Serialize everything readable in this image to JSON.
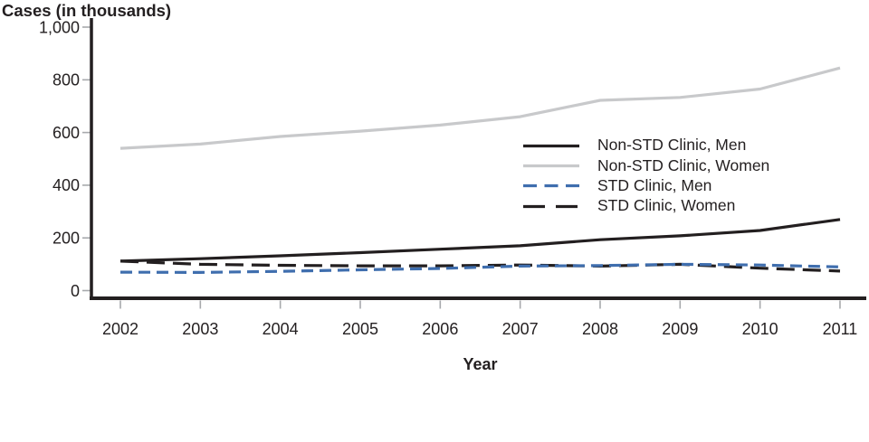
{
  "chart_data": {
    "type": "line",
    "ylabel": "Cases (in thousands)",
    "xlabel": "Year",
    "x": [
      2002,
      2003,
      2004,
      2005,
      2006,
      2007,
      2008,
      2009,
      2010,
      2011
    ],
    "ylim": [
      0,
      1000
    ],
    "yticks": [
      0,
      200,
      400,
      600,
      800,
      1000
    ],
    "ytick_labels": [
      "0",
      "200",
      "400",
      "600",
      "800",
      "1,000"
    ],
    "grid": false,
    "legend_position": "right-center",
    "axis_color": "#231f20",
    "tick_color": "#a7a9ac",
    "series": [
      {
        "name": "Non-STD Clinic, Men",
        "color": "#231f20",
        "dash": "solid",
        "values": [
          112,
          121,
          132,
          144,
          157,
          170,
          193,
          208,
          228,
          270
        ]
      },
      {
        "name": "Non-STD Clinic, Women",
        "color": "#c8c9cb",
        "dash": "solid",
        "values": [
          540,
          556,
          585,
          605,
          628,
          660,
          722,
          733,
          765,
          845
        ]
      },
      {
        "name": "STD Clinic, Men",
        "color": "#3f6eae",
        "dash": "dashed",
        "values": [
          70,
          69,
          73,
          79,
          84,
          93,
          95,
          100,
          97,
          90
        ]
      },
      {
        "name": "STD Clinic, Women",
        "color": "#231f20",
        "dash": "long-dash",
        "values": [
          112,
          100,
          96,
          94,
          94,
          97,
          93,
          100,
          85,
          74
        ]
      }
    ]
  }
}
